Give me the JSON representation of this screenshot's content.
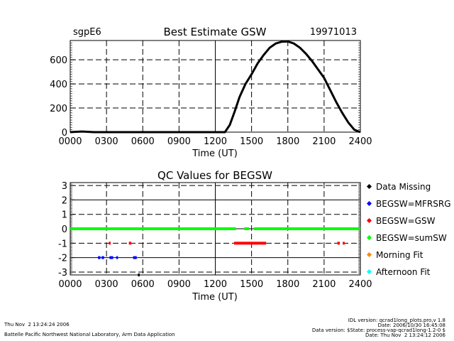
{
  "chart_data": [
    {
      "type": "line",
      "title": "Best Estimate GSW",
      "site": "sgpE6",
      "date": "19971013",
      "xlabel": "Time (UT)",
      "ylabel": "",
      "xlim": [
        0,
        24
      ],
      "ylim": [
        0,
        760
      ],
      "xticks": [
        "0000",
        "0300",
        "0600",
        "0900",
        "1200",
        "1500",
        "1800",
        "2100",
        "2400"
      ],
      "yticks": [
        {
          "v": 0,
          "label": "0"
        },
        {
          "v": 200,
          "label": "200"
        },
        {
          "v": 400,
          "label": "400"
        },
        {
          "v": 600,
          "label": "600"
        }
      ],
      "series": [
        {
          "name": "BEGSW",
          "color": "#000000",
          "x": [
            0,
            0.5,
            1,
            2,
            4,
            6,
            8,
            10,
            12,
            12.8,
            13.2,
            13.6,
            14,
            14.5,
            15,
            15.5,
            16,
            16.5,
            17,
            17.5,
            18,
            18.5,
            19,
            19.5,
            20,
            20.5,
            21,
            21.5,
            22,
            22.5,
            23,
            23.5,
            24
          ],
          "y": [
            0,
            3,
            5,
            0,
            0,
            0,
            0,
            0,
            0,
            0,
            60,
            170,
            290,
            400,
            480,
            570,
            640,
            700,
            735,
            750,
            752,
            735,
            700,
            650,
            590,
            520,
            450,
            350,
            250,
            160,
            80,
            20,
            0
          ]
        }
      ]
    },
    {
      "type": "scatter",
      "title": "QC Values for BEGSW",
      "xlabel": "Time (UT)",
      "xlim": [
        0,
        24
      ],
      "ylim": [
        -3.2,
        3.2
      ],
      "xticks": [
        "0000",
        "0300",
        "0600",
        "0900",
        "1200",
        "1500",
        "1800",
        "2100",
        "2400"
      ],
      "yticks": [
        "3",
        "2",
        "1",
        "0",
        "-1",
        "-2",
        "-3"
      ],
      "legend": [
        {
          "label": "Data Missing",
          "color": "#000000"
        },
        {
          "label": "BEGSW=MFRSRG",
          "color": "#0000ff"
        },
        {
          "label": "BEGSW=GSW",
          "color": "#ff0000"
        },
        {
          "label": "BEGSW=sumSW",
          "color": "#00ff00"
        },
        {
          "label": "Morning Fit",
          "color": "#ff8800"
        },
        {
          "label": "Afternoon Fit",
          "color": "#00ffff"
        }
      ],
      "segments": [
        {
          "series": "BEGSW=sumSW",
          "y": 0,
          "x0": 0,
          "x1": 13.7
        },
        {
          "series": "BEGSW=sumSW",
          "y": 0,
          "x0": 14.4,
          "x1": 14.8
        },
        {
          "series": "BEGSW=sumSW",
          "y": 0,
          "x0": 15.2,
          "x1": 24
        },
        {
          "series": "BEGSW=GSW",
          "y": -1,
          "x0": 3.2,
          "x1": 3.35
        },
        {
          "series": "BEGSW=GSW",
          "y": -1,
          "x0": 4.85,
          "x1": 5.05
        },
        {
          "series": "BEGSW=GSW",
          "y": -1,
          "x0": 13.55,
          "x1": 16.2
        },
        {
          "series": "BEGSW=GSW",
          "y": -1,
          "x0": 22.1,
          "x1": 22.3
        },
        {
          "series": "BEGSW=GSW",
          "y": -1,
          "x0": 22.55,
          "x1": 22.7
        },
        {
          "series": "BEGSW=MFRSRG",
          "y": -2,
          "x0": 2.3,
          "x1": 2.5
        },
        {
          "series": "BEGSW=MFRSRG",
          "y": -2,
          "x0": 2.6,
          "x1": 2.8
        },
        {
          "series": "BEGSW=MFRSRG",
          "y": -2,
          "x0": 3.25,
          "x1": 3.55
        },
        {
          "series": "BEGSW=MFRSRG",
          "y": -2,
          "x0": 3.8,
          "x1": 3.95
        },
        {
          "series": "BEGSW=MFRSRG",
          "y": -2,
          "x0": 5.2,
          "x1": 5.5
        },
        {
          "series": "Data Missing",
          "y": -3.2,
          "x0": 5.6,
          "x1": 5.75
        }
      ]
    }
  ],
  "footer": {
    "left_date": "Thu Nov  2 13:24:24 2006",
    "left_org": "Battelle Pacific Northwest National Laboratory, Arm Data Application",
    "right_lines": [
      "IDL version: qcrad1long_plots.pro,v 1.8",
      "Date: 2006/10/30 16:45:08",
      "Data version: $State: process-vap-qcrad1long-1.2-0 $",
      "Date: Thu Nov  2 13:24:12 2006"
    ]
  }
}
